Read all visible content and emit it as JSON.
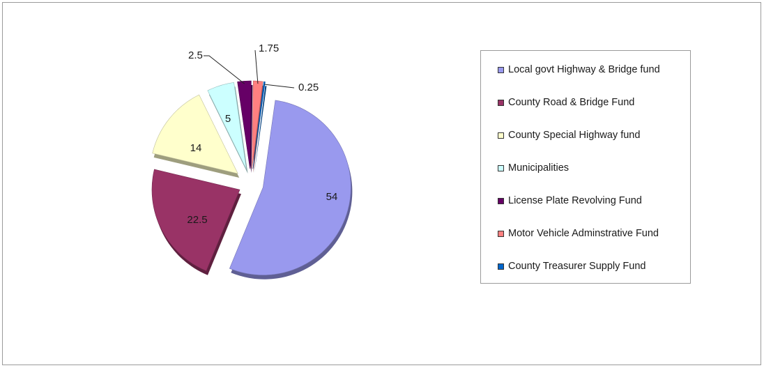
{
  "chart_data": {
    "type": "pie",
    "title": "",
    "categories": [
      "Local govt Highway & Bridge fund",
      "County Road & Bridge Fund",
      "County Special Highway fund",
      "Municipalities",
      "License Plate Revolving Fund",
      "Motor Vehicle Adminstrative Fund",
      "County Treasurer Supply Fund"
    ],
    "values": [
      54,
      22.5,
      14,
      5,
      2.5,
      1.75,
      0.25
    ],
    "data_labels": [
      "54",
      "22.5",
      "14",
      "5",
      "2.5",
      "1.75",
      "0.25"
    ],
    "colors": [
      "#9999ee",
      "#993366",
      "#ffffcc",
      "#ccffff",
      "#660066",
      "#ff8080",
      "#0066cc"
    ],
    "exploded": true,
    "legend_position": "right"
  }
}
